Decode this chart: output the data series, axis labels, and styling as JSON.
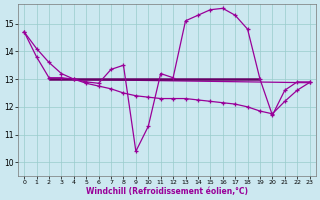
{
  "xlabel": "Windchill (Refroidissement éolien,°C)",
  "background_color": "#cce8f0",
  "line_color": "#990099",
  "dark_line_color": "#660066",
  "xlim": [
    -0.5,
    23.5
  ],
  "ylim": [
    9.5,
    15.7
  ],
  "yticks": [
    10,
    11,
    12,
    13,
    14,
    15
  ],
  "xticks": [
    0,
    1,
    2,
    3,
    4,
    5,
    6,
    7,
    8,
    9,
    10,
    11,
    12,
    13,
    14,
    15,
    16,
    17,
    18,
    19,
    20,
    21,
    22,
    23
  ],
  "grid_color": "#99cccc",
  "marker": "+",
  "curve1_x": [
    0,
    1,
    2,
    3,
    4,
    5,
    6,
    7,
    8,
    9,
    10,
    11,
    12,
    13,
    14,
    15,
    16,
    17,
    18,
    19,
    20,
    21,
    22,
    23
  ],
  "curve1_y": [
    14.7,
    13.8,
    13.05,
    13.05,
    13.0,
    12.9,
    12.85,
    13.35,
    13.5,
    10.4,
    11.3,
    13.2,
    13.05,
    15.1,
    15.3,
    15.5,
    15.55,
    15.3,
    14.8,
    13.0,
    11.7,
    12.6,
    12.9,
    12.9
  ],
  "curve2_x": [
    0,
    1,
    2,
    3,
    4,
    5,
    6,
    7,
    8,
    9,
    10,
    11,
    12,
    13,
    14,
    15,
    16,
    17,
    18,
    19,
    20,
    21,
    22,
    23
  ],
  "curve2_y": [
    14.7,
    14.1,
    13.6,
    13.2,
    13.0,
    12.85,
    12.75,
    12.65,
    12.5,
    12.4,
    12.35,
    12.3,
    12.3,
    12.3,
    12.25,
    12.2,
    12.15,
    12.1,
    12.0,
    11.85,
    11.75,
    12.2,
    12.6,
    12.88
  ],
  "hline1_x": [
    2,
    19
  ],
  "hline1_y": [
    13.0,
    13.0
  ],
  "hline2_x": [
    2,
    23
  ],
  "hline2_y": [
    13.0,
    12.87
  ]
}
